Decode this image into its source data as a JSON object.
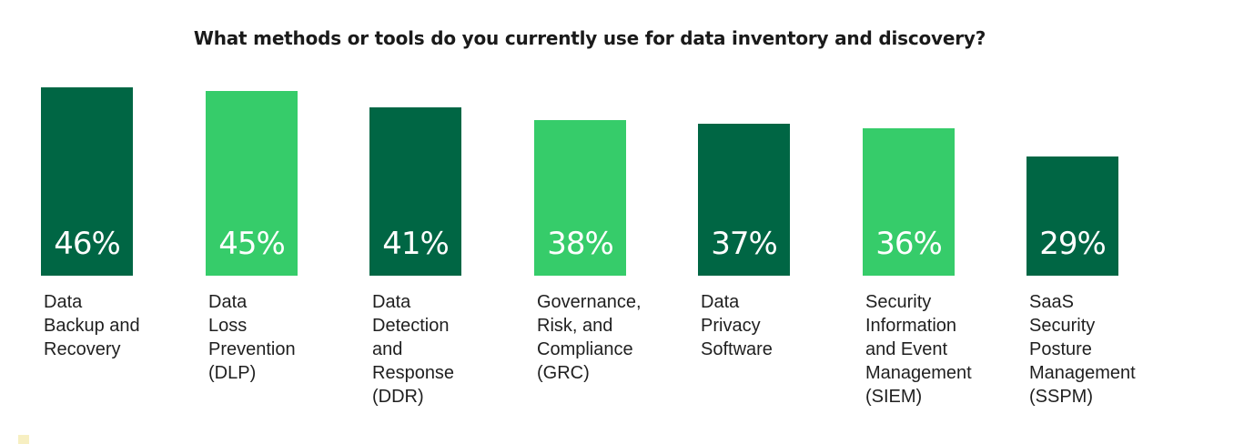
{
  "chart_data": {
    "type": "bar",
    "title": "What methods or tools do you currently use for data inventory and discovery?",
    "xlabel": "",
    "ylabel": "",
    "ylim": [
      0,
      46
    ],
    "grid": false,
    "legend": "none",
    "unit": "%",
    "categories": [
      [
        "Data",
        "Backup and",
        "Recovery"
      ],
      [
        "Data",
        "Loss",
        "Prevention",
        "(DLP)"
      ],
      [
        "Data",
        "Detection",
        "and",
        "Response",
        "(DDR)"
      ],
      [
        "Governance,",
        "Risk, and",
        "Compliance",
        "(GRC)"
      ],
      [
        "Data",
        "Privacy",
        "Software"
      ],
      [
        "Security",
        "Information",
        "and Event",
        "Management",
        "(SIEM)"
      ],
      [
        "SaaS",
        "Security",
        "Posture",
        "Management",
        "(SSPM)"
      ]
    ],
    "values": [
      46,
      45,
      41,
      38,
      37,
      36,
      29
    ],
    "value_labels": [
      "46%",
      "45%",
      "41%",
      "38%",
      "37%",
      "36%",
      "29%"
    ],
    "colors": [
      "#006644",
      "#36cc6a",
      "#006644",
      "#36cc6a",
      "#006644",
      "#36cc6a",
      "#006644"
    ]
  }
}
